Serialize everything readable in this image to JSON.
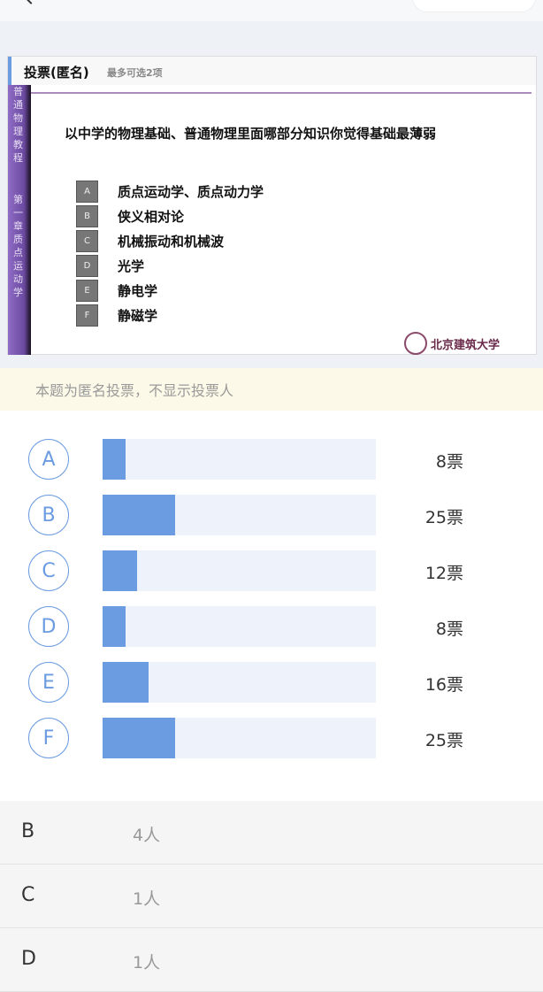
{
  "slide": {
    "title": "投票(匿名)",
    "subtitle": "最多可选2项",
    "side_top": "普通物理教程",
    "side_bottom": "第一章 质点运动学",
    "question": "以中学的物理基础、普通物理里面哪部分知识你觉得基础最薄弱",
    "options": [
      {
        "key": "A",
        "text": "质点运动学、质点动力学"
      },
      {
        "key": "B",
        "text": "侠义相对论"
      },
      {
        "key": "C",
        "text": "机械振动和机械波"
      },
      {
        "key": "D",
        "text": "光学"
      },
      {
        "key": "E",
        "text": "静电学"
      },
      {
        "key": "F",
        "text": "静磁学"
      }
    ],
    "logo": "北京建筑大学"
  },
  "notice": "本题为匿名投票，不显示投票人",
  "results": [
    {
      "key": "A",
      "votes": 8,
      "label": "8票"
    },
    {
      "key": "B",
      "votes": 25,
      "label": "25票"
    },
    {
      "key": "C",
      "votes": 12,
      "label": "12票"
    },
    {
      "key": "D",
      "votes": 8,
      "label": "8票"
    },
    {
      "key": "E",
      "votes": 16,
      "label": "16票"
    },
    {
      "key": "F",
      "votes": 25,
      "label": "25票"
    }
  ],
  "voter_list": [
    {
      "key": "B",
      "count": "4人"
    },
    {
      "key": "C",
      "count": "1人"
    },
    {
      "key": "D",
      "count": "1人"
    }
  ],
  "colors": {
    "accent": "#6b9be0",
    "track": "#edf2fb",
    "notice_bg": "#fdf9e8"
  }
}
